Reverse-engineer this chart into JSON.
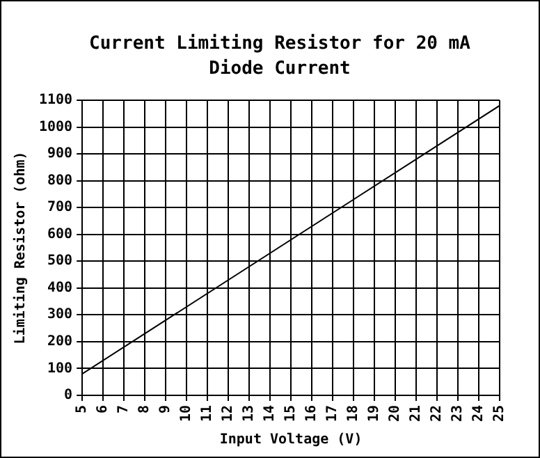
{
  "chart_data": {
    "type": "line",
    "title": "Current Limiting Resistor for 20 mA Diode Current",
    "xlabel": "Input Voltage (V)",
    "ylabel": "Limiting Resistor (ohm)",
    "x": [
      5,
      25
    ],
    "series": [
      {
        "color": "#000000",
        "values": [
          80,
          1080
        ]
      }
    ],
    "xlim": [
      5,
      25
    ],
    "xticks": [
      5,
      6,
      7,
      8,
      9,
      10,
      11,
      12,
      13,
      14,
      15,
      16,
      17,
      18,
      19,
      20,
      21,
      22,
      23,
      24,
      25
    ],
    "ylim": [
      0,
      1100
    ],
    "yticks": [
      0,
      100,
      200,
      300,
      400,
      500,
      600,
      700,
      800,
      900,
      1000,
      1100
    ],
    "grid": true,
    "legend": false,
    "marker": "none",
    "line_style": "solid"
  }
}
